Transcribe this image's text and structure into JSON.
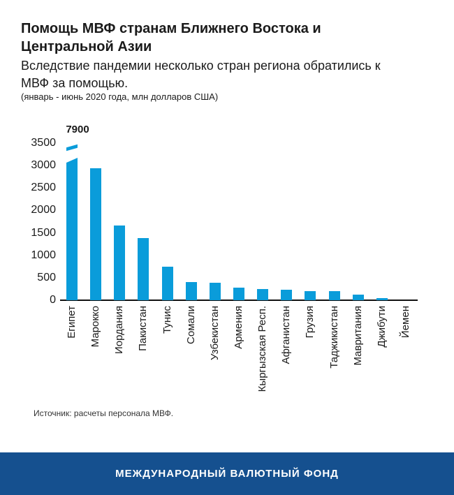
{
  "colors": {
    "bar": "#0a9cda",
    "brand-bg": "#15508f",
    "ink": "#1a1a1a"
  },
  "header": {
    "title": "Помощь МВФ странам Ближнего Востока и\nЦентральной Азии",
    "subtitle": "Вследствие пандемии несколько стран региона обратились к\nМВФ за помощью.",
    "note": "(январь - июнь 2020 года, млн долларов США)"
  },
  "chart_data": {
    "type": "bar",
    "title": "Помощь МВФ странам Ближнего Востока и Центральной Азии",
    "xlabel": "",
    "ylabel": "",
    "categories": [
      "Египет",
      "Марокко",
      "Иордания",
      "Пакистан",
      "Тунис",
      "Сомали",
      "Узбекистан",
      "Армения",
      "Кыргызская Респ.",
      "Афганистан",
      "Грузия",
      "Таджикистан",
      "Мавритания",
      "Джибути",
      "Йемен"
    ],
    "values": [
      7900,
      2940,
      1670,
      1390,
      750,
      400,
      385,
      280,
      245,
      230,
      205,
      195,
      125,
      45,
      0
    ],
    "ylim": [
      0,
      3500
    ],
    "yticks": [
      0,
      500,
      1000,
      1500,
      2000,
      2500,
      3000,
      3500
    ],
    "grid": false,
    "legend": null,
    "broken_bar": {
      "category": "Египет",
      "true_value": 7900,
      "shown_at": 3170,
      "label": "7900"
    }
  },
  "footer": {
    "source": "Источник: расчеты персонала МВФ.",
    "brand": "МЕЖДУНАРОДНЫЙ ВАЛЮТНЫЙ ФОНД"
  }
}
